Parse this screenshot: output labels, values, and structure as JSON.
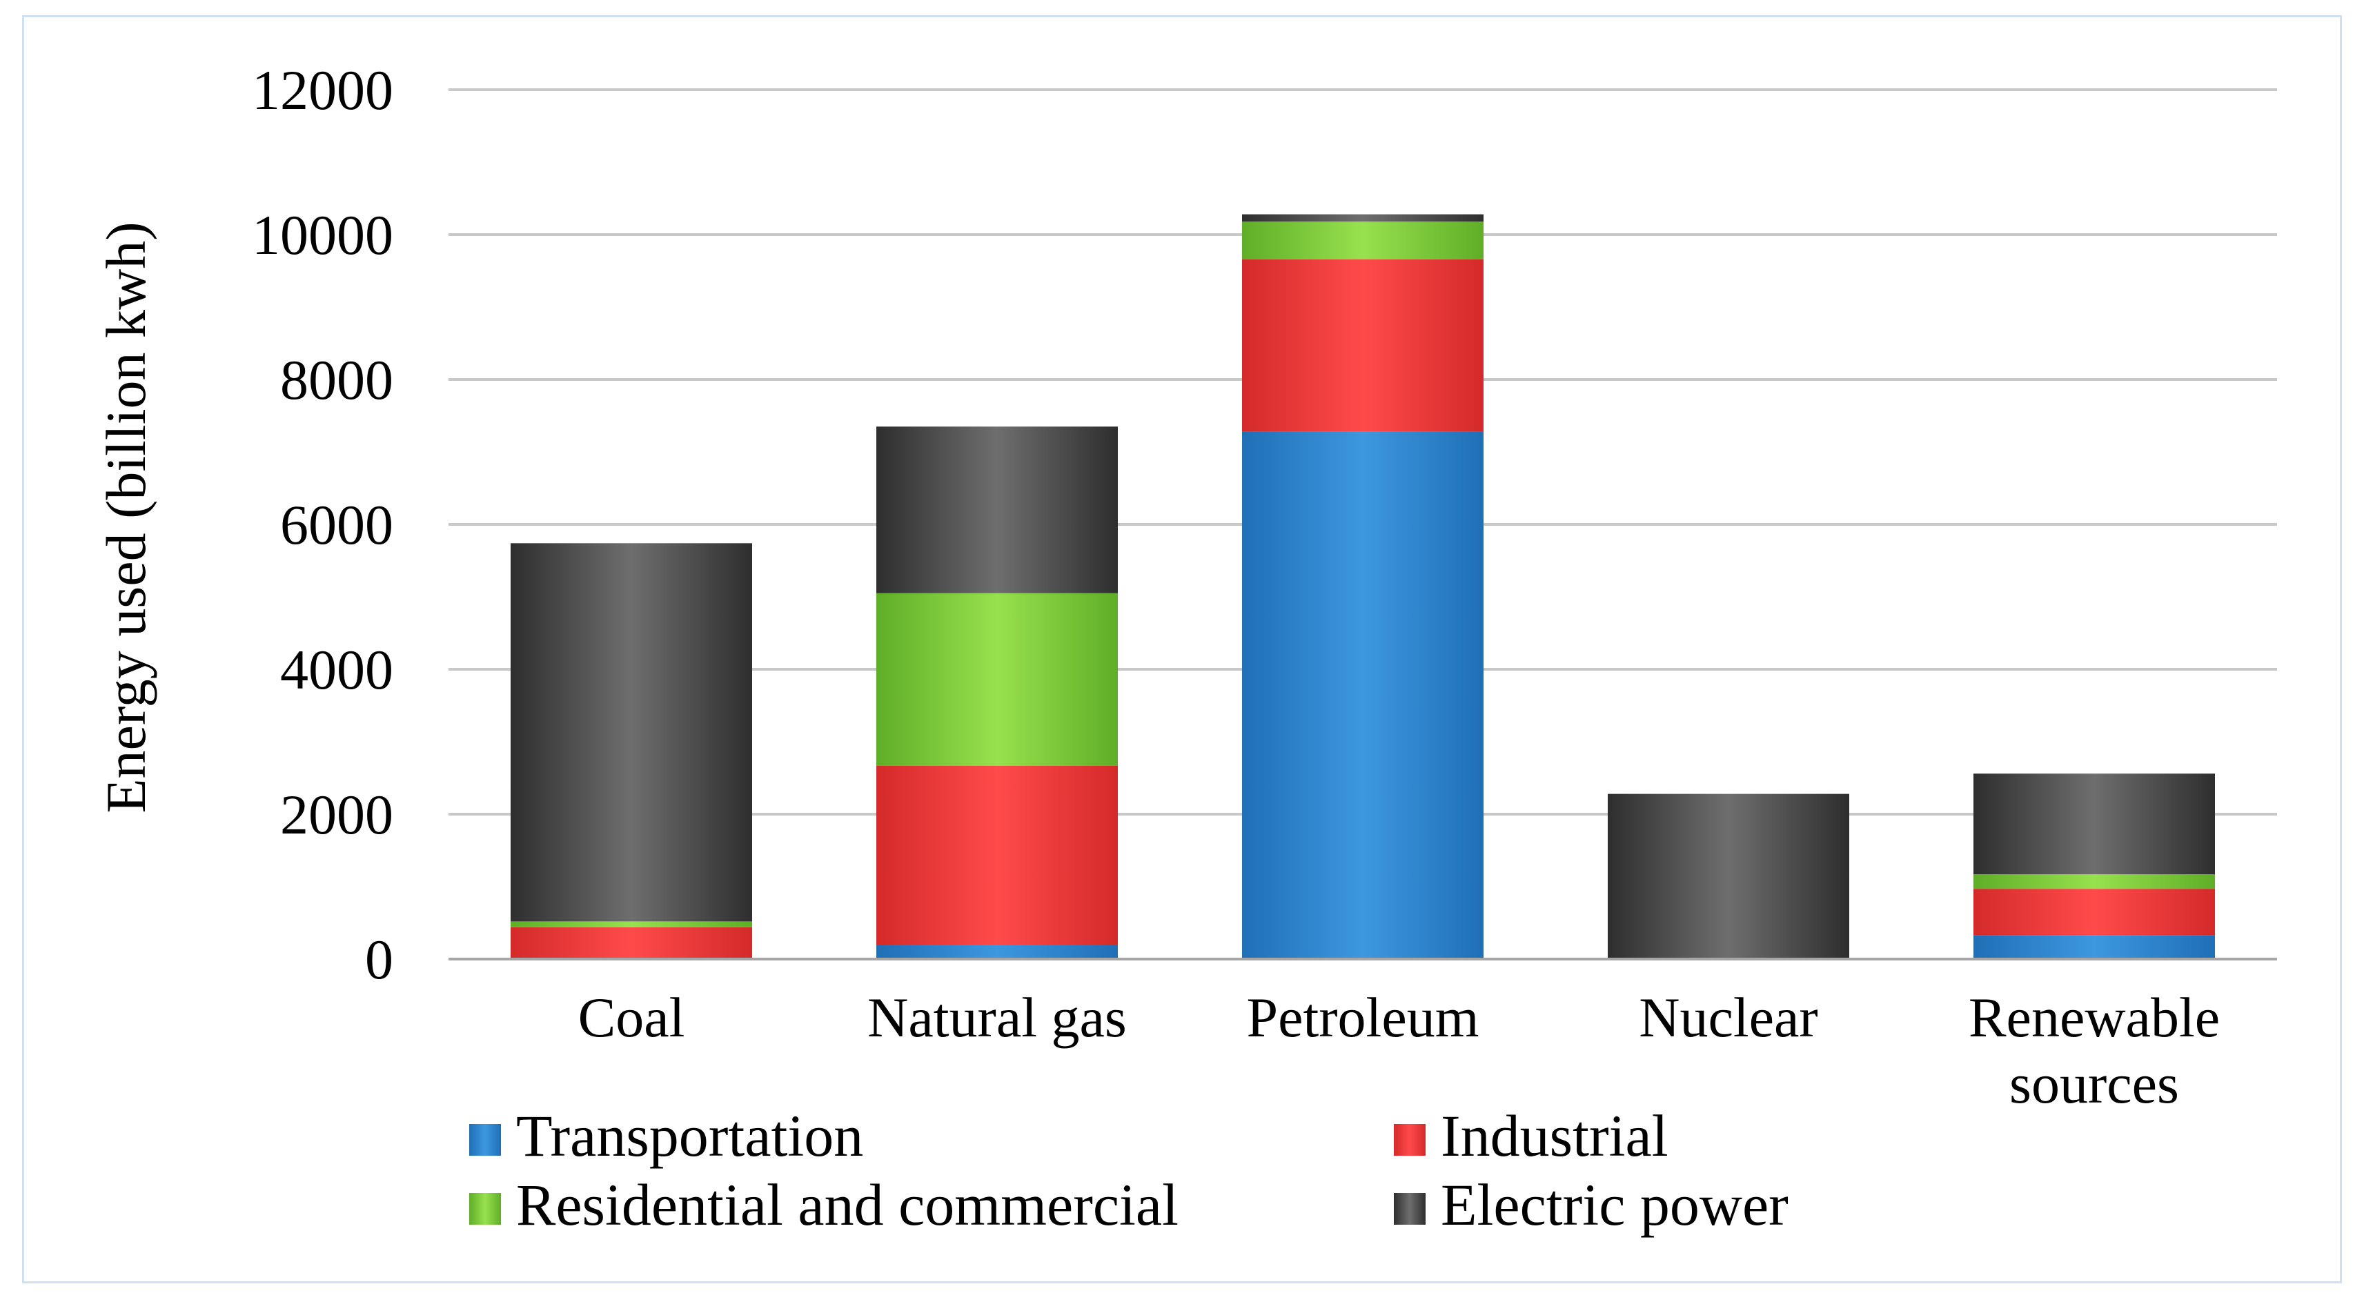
{
  "chart_data": {
    "type": "bar",
    "stacked": true,
    "title": "",
    "xlabel": "",
    "ylabel": "Energy used (billion kwh)",
    "ylim": [
      0,
      12000
    ],
    "yticks": [
      0,
      2000,
      4000,
      6000,
      8000,
      10000,
      12000
    ],
    "ytick_labels": [
      "0",
      "2000",
      "4000",
      "6000",
      "8000",
      "10000",
      "12000"
    ],
    "grid": true,
    "legend_position": "bottom",
    "categories": [
      [
        "Coal"
      ],
      [
        "Natural gas"
      ],
      [
        "Petroleum"
      ],
      [
        "Nuclear"
      ],
      [
        "Renewable",
        "sources"
      ]
    ],
    "series": [
      {
        "name": "Transportation",
        "color": "#2f86cf",
        "values": [
          0,
          200,
          7280,
          0,
          330
        ]
      },
      {
        "name": "Industrial",
        "color": "#e63b3b",
        "values": [
          440,
          2470,
          2380,
          0,
          640
        ]
      },
      {
        "name": "Residential and commercial",
        "color": "#74c43a",
        "values": [
          80,
          2380,
          520,
          0,
          200
        ]
      },
      {
        "name": "Electric power",
        "color": "#4d4d4d",
        "values": [
          5220,
          2300,
          100,
          2280,
          1390
        ]
      }
    ]
  }
}
